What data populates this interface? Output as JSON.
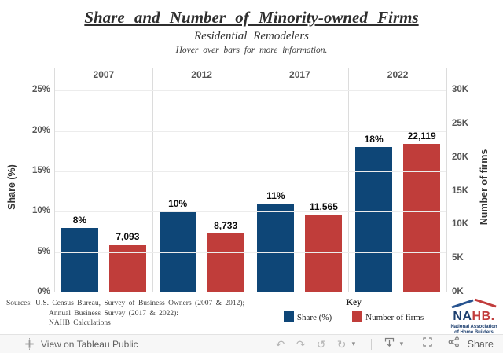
{
  "header": {
    "title": "Share and Number of Minority-owned Firms",
    "subtitle": "Residential Remodelers",
    "hint": "Hover over bars for more information."
  },
  "chart_data": {
    "type": "bar",
    "categories": [
      "2007",
      "2012",
      "2017",
      "2022"
    ],
    "series": [
      {
        "name": "Share (%)",
        "axis": "left",
        "color": "#0e4677",
        "values": [
          8,
          10,
          11,
          18
        ],
        "labels": [
          "8%",
          "10%",
          "11%",
          "18%"
        ]
      },
      {
        "name": "Number of firms",
        "axis": "right",
        "color": "#c03d3a",
        "values": [
          7093,
          8733,
          11565,
          22119
        ],
        "labels": [
          "7,093",
          "8,733",
          "11,565",
          "22,119"
        ]
      }
    ],
    "left_axis": {
      "title": "Share (%)",
      "ticks": [
        "0%",
        "5%",
        "10%",
        "15%",
        "20%",
        "25%"
      ],
      "ylim": [
        0,
        25
      ],
      "render_max": 26
    },
    "right_axis": {
      "title": "Number of firms",
      "ticks": [
        "0K",
        "5K",
        "10K",
        "15K",
        "20K",
        "25K",
        "30K"
      ],
      "ylim": [
        0,
        30000
      ],
      "render_max": 31200
    },
    "grid": true,
    "legend_position": "bottom",
    "title": "Share and Number of Minority-owned Firms",
    "subtitle": "Residential Remodelers"
  },
  "footer": {
    "sources_line1": "Sources: U.S. Census Bureau, Survey of Business Owners (2007 & 2012);",
    "sources_line2": "Annual Business Survey (2017 & 2022):",
    "sources_line3": "NAHB Calculations",
    "key_title": "Key",
    "legend": [
      {
        "label": "Share (%)",
        "color": "#0e4677"
      },
      {
        "label": "Number of firms",
        "color": "#c03d3a"
      }
    ],
    "logo": {
      "na": "NA",
      "hb": "HB.",
      "line1": "National Association",
      "line2": "of Home Builders"
    }
  },
  "toolbar": {
    "view_label": "View on Tableau Public",
    "share_label": "Share"
  },
  "colors": {
    "bar_blue": "#0e4677",
    "bar_red": "#c03d3a",
    "logo_navy": "#1c3e6e",
    "logo_red": "#c13c3c"
  }
}
